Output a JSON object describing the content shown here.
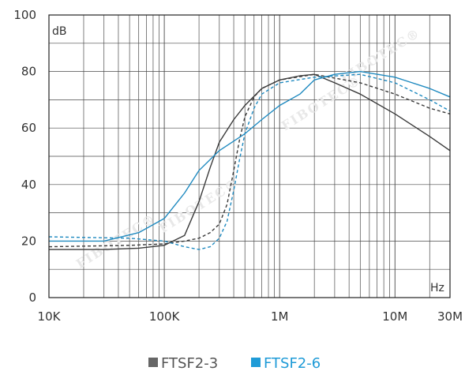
{
  "chart_data": {
    "type": "line",
    "title": "",
    "xlabel": "",
    "ylabel": "",
    "x_scale": "log",
    "xlim_hz": [
      10000,
      30000000
    ],
    "ylim": [
      0,
      100
    ],
    "unit_y": "dB",
    "unit_x": "Hz",
    "grid": true,
    "legend_position": "bottom-center",
    "watermark": "FIBOTEC®",
    "x_ticks": [
      {
        "value": 10000,
        "label": "10K"
      },
      {
        "value": 100000,
        "label": "100K"
      },
      {
        "value": 1000000,
        "label": "1M"
      },
      {
        "value": 10000000,
        "label": "10M"
      },
      {
        "value": 30000000,
        "label": "30M"
      }
    ],
    "y_ticks": [
      {
        "value": 0,
        "label": "0"
      },
      {
        "value": 20,
        "label": "20"
      },
      {
        "value": 40,
        "label": "40"
      },
      {
        "value": 60,
        "label": "60"
      },
      {
        "value": 80,
        "label": "80"
      },
      {
        "value": 100,
        "label": "100"
      }
    ],
    "series": [
      {
        "name": "FTSF2-3",
        "color": "#3a3a3a",
        "legend_color": "#666666",
        "style": "solid",
        "points": [
          [
            10000,
            17
          ],
          [
            30000,
            17
          ],
          [
            60000,
            17.5
          ],
          [
            100000,
            18.5
          ],
          [
            150000,
            22
          ],
          [
            200000,
            34
          ],
          [
            250000,
            46
          ],
          [
            300000,
            55
          ],
          [
            400000,
            63
          ],
          [
            500000,
            68
          ],
          [
            700000,
            74
          ],
          [
            1000000,
            77
          ],
          [
            1500000,
            78.5
          ],
          [
            2000000,
            79
          ],
          [
            3000000,
            76
          ],
          [
            5000000,
            72
          ],
          [
            10000000,
            65
          ],
          [
            20000000,
            57
          ],
          [
            30000000,
            52
          ]
        ]
      },
      {
        "name": "FTSF2-3",
        "color": "#3a3a3a",
        "style": "dashed",
        "points": [
          [
            10000,
            18
          ],
          [
            50000,
            18.5
          ],
          [
            100000,
            19
          ],
          [
            150000,
            20
          ],
          [
            200000,
            21
          ],
          [
            250000,
            23
          ],
          [
            300000,
            26
          ],
          [
            350000,
            33
          ],
          [
            400000,
            45
          ],
          [
            450000,
            56
          ],
          [
            500000,
            64
          ],
          [
            600000,
            71
          ],
          [
            700000,
            74
          ],
          [
            1000000,
            77
          ],
          [
            2000000,
            79
          ],
          [
            5000000,
            76
          ],
          [
            10000000,
            72
          ],
          [
            20000000,
            67
          ],
          [
            30000000,
            65
          ]
        ]
      },
      {
        "name": "FTSF2-6",
        "color": "#1f8ac0",
        "legend_color": "#1f9bd7",
        "style": "solid",
        "points": [
          [
            10000,
            20
          ],
          [
            30000,
            20
          ],
          [
            60000,
            23
          ],
          [
            100000,
            28
          ],
          [
            150000,
            37
          ],
          [
            200000,
            45
          ],
          [
            300000,
            52
          ],
          [
            500000,
            58
          ],
          [
            700000,
            63
          ],
          [
            1000000,
            68
          ],
          [
            1500000,
            72
          ],
          [
            2000000,
            77
          ],
          [
            3000000,
            79
          ],
          [
            5000000,
            80
          ],
          [
            10000000,
            78
          ],
          [
            20000000,
            74
          ],
          [
            30000000,
            71
          ]
        ]
      },
      {
        "name": "FTSF2-6",
        "color": "#1f8ac0",
        "style": "dashed",
        "points": [
          [
            10000,
            21.5
          ],
          [
            50000,
            21
          ],
          [
            100000,
            20
          ],
          [
            150000,
            18
          ],
          [
            200000,
            17
          ],
          [
            250000,
            18
          ],
          [
            300000,
            21
          ],
          [
            350000,
            27
          ],
          [
            400000,
            38
          ],
          [
            450000,
            49
          ],
          [
            500000,
            58
          ],
          [
            600000,
            67
          ],
          [
            700000,
            72
          ],
          [
            1000000,
            76
          ],
          [
            2000000,
            78
          ],
          [
            5000000,
            79
          ],
          [
            10000000,
            76
          ],
          [
            20000000,
            70
          ],
          [
            30000000,
            66
          ]
        ]
      }
    ],
    "legend": [
      {
        "label": "FTSF2-3",
        "color": "#666666",
        "text_color": "#555555"
      },
      {
        "label": "FTSF2-6",
        "color": "#1f9bd7",
        "text_color": "#1f9bd7"
      }
    ]
  }
}
